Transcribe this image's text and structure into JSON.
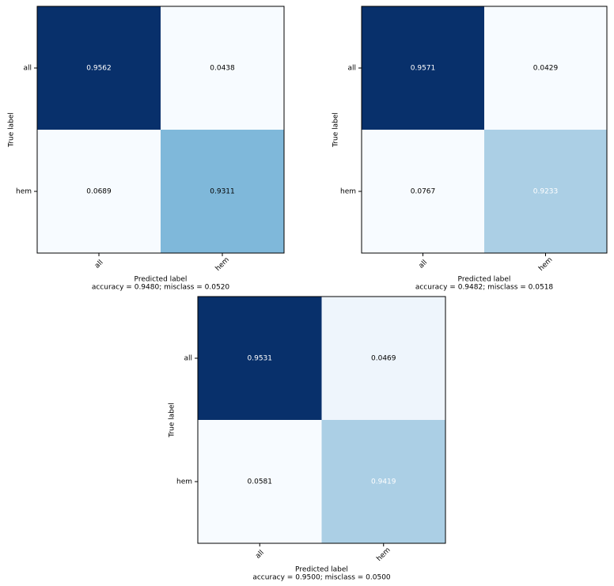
{
  "chart_data": [
    {
      "type": "heatmap",
      "x_label": "Predicted label",
      "y_label": "True label",
      "subtitle": "accuracy = 0.9480; misclass = 0.0520",
      "x_categories": [
        "all",
        "hem"
      ],
      "y_categories": [
        "all",
        "hem"
      ],
      "values": [
        [
          0.9562,
          0.0438
        ],
        [
          0.0689,
          0.9311
        ]
      ],
      "cell_colors": [
        [
          "#08306b",
          "#f7fbff"
        ],
        [
          "#f7fbff",
          "#7fb8da"
        ]
      ],
      "label_colors": [
        [
          "#ffffff",
          "#000000"
        ],
        [
          "#000000",
          "#000000"
        ]
      ]
    },
    {
      "type": "heatmap",
      "x_label": "Predicted label",
      "y_label": "True label",
      "subtitle": "accuracy = 0.9482; misclass = 0.0518",
      "x_categories": [
        "all",
        "hem"
      ],
      "y_categories": [
        "all",
        "hem"
      ],
      "values": [
        [
          0.9571,
          0.0429
        ],
        [
          0.0767,
          0.9233
        ]
      ],
      "cell_colors": [
        [
          "#08306b",
          "#f7fbff"
        ],
        [
          "#f7fbff",
          "#abcfe5"
        ]
      ],
      "label_colors": [
        [
          "#ffffff",
          "#000000"
        ],
        [
          "#000000",
          "#ffffff"
        ]
      ]
    },
    {
      "type": "heatmap",
      "x_label": "Predicted label",
      "y_label": "True label",
      "subtitle": "accuracy = 0.9500; misclass = 0.0500",
      "x_categories": [
        "all",
        "hem"
      ],
      "y_categories": [
        "all",
        "hem"
      ],
      "values": [
        [
          0.9531,
          0.0469
        ],
        [
          0.0581,
          0.9419
        ]
      ],
      "cell_colors": [
        [
          "#08306b",
          "#eef5fc"
        ],
        [
          "#f7fbff",
          "#abcfe5"
        ]
      ],
      "label_colors": [
        [
          "#ffffff",
          "#000000"
        ],
        [
          "#000000",
          "#ffffff"
        ]
      ]
    }
  ]
}
